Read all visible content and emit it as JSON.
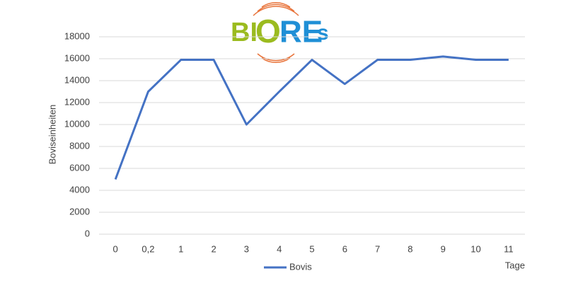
{
  "logo_parts": [
    "BI",
    "O",
    "RE",
    "s"
  ],
  "chart_data": {
    "type": "line",
    "y_label": "Boviseinheiten",
    "x_label": "Tage",
    "categories": [
      "0",
      "0,2",
      "1",
      "2",
      "3",
      "4",
      "5",
      "6",
      "7",
      "8",
      "9",
      "10",
      "11"
    ],
    "series": [
      {
        "name": "Bovis",
        "color": "#4472c4",
        "values": [
          5000,
          13000,
          15900,
          15900,
          10000,
          13000,
          15900,
          13700,
          15900,
          15900,
          16200,
          15900,
          15900
        ]
      }
    ],
    "ylim": [
      0,
      18000
    ],
    "yticks": [
      0,
      2000,
      4000,
      6000,
      8000,
      10000,
      12000,
      14000,
      16000,
      18000
    ],
    "grid": true,
    "legend": "bottom"
  }
}
